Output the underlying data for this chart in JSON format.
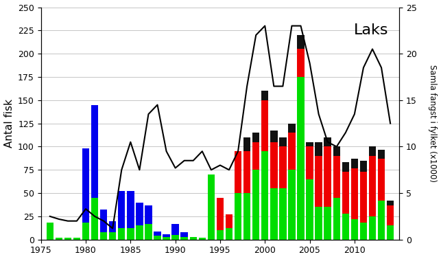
{
  "years": [
    1976,
    1977,
    1978,
    1979,
    1980,
    1981,
    1982,
    1983,
    1984,
    1985,
    1986,
    1987,
    1988,
    1989,
    1990,
    1991,
    1992,
    1993,
    1994,
    1995,
    1996,
    1997,
    1998,
    1999,
    2000,
    2001,
    2002,
    2003,
    2004,
    2005,
    2006,
    2007,
    2008,
    2009,
    2010,
    2011,
    2012,
    2013,
    2014
  ],
  "green": [
    18,
    2,
    2,
    2,
    18,
    45,
    8,
    8,
    12,
    12,
    15,
    17,
    4,
    3,
    5,
    3,
    3,
    2,
    70,
    10,
    12,
    50,
    50,
    75,
    95,
    55,
    55,
    75,
    175,
    65,
    35,
    35,
    45,
    28,
    22,
    18,
    25,
    42,
    15
  ],
  "red": [
    0,
    0,
    0,
    0,
    0,
    0,
    0,
    0,
    0,
    0,
    0,
    0,
    0,
    0,
    0,
    0,
    0,
    0,
    0,
    35,
    15,
    45,
    45,
    30,
    55,
    50,
    45,
    40,
    30,
    35,
    55,
    65,
    45,
    45,
    55,
    55,
    65,
    45,
    22
  ],
  "black": [
    0,
    0,
    0,
    0,
    0,
    0,
    0,
    0,
    0,
    0,
    0,
    0,
    0,
    0,
    0,
    0,
    0,
    0,
    0,
    0,
    0,
    0,
    15,
    10,
    10,
    12,
    10,
    10,
    15,
    5,
    15,
    10,
    10,
    10,
    10,
    12,
    10,
    10,
    5
  ],
  "blue": [
    0,
    0,
    0,
    0,
    80,
    100,
    24,
    12,
    40,
    40,
    25,
    20,
    5,
    3,
    12,
    5,
    0,
    0,
    0,
    0,
    0,
    0,
    0,
    0,
    0,
    0,
    0,
    0,
    0,
    0,
    0,
    0,
    0,
    0,
    0,
    0,
    0,
    0,
    0
  ],
  "line": [
    2.5,
    2.2,
    2.0,
    2.0,
    3.3,
    2.5,
    2.0,
    1.2,
    7.5,
    10.5,
    7.5,
    13.5,
    14.5,
    9.5,
    7.7,
    8.5,
    8.5,
    9.5,
    7.5,
    8.0,
    7.5,
    9.5,
    16.5,
    22.0,
    23.0,
    16.5,
    16.5,
    23.0,
    23.0,
    19.0,
    13.5,
    10.5,
    10.0,
    11.5,
    13.5,
    18.5,
    20.5,
    18.5,
    12.5
  ],
  "ylabel_left": "Antal fisk",
  "ylabel_right": "Samla fangst i fylket (x1000)",
  "ylim_left": [
    0,
    250
  ],
  "ylim_right": [
    0,
    25
  ],
  "yticks_left": [
    0,
    25,
    50,
    75,
    100,
    125,
    150,
    175,
    200,
    225,
    250
  ],
  "yticks_right": [
    0,
    5,
    10,
    15,
    20,
    25
  ],
  "xticks": [
    1975,
    1980,
    1985,
    1990,
    1995,
    2000,
    2005,
    2010
  ],
  "annotation": "Laks",
  "bar_width": 0.8,
  "colors": {
    "green": "#00dd00",
    "red": "#ee0000",
    "black": "#111111",
    "blue": "#0000ee",
    "line": "#000000"
  },
  "background": "#ffffff"
}
